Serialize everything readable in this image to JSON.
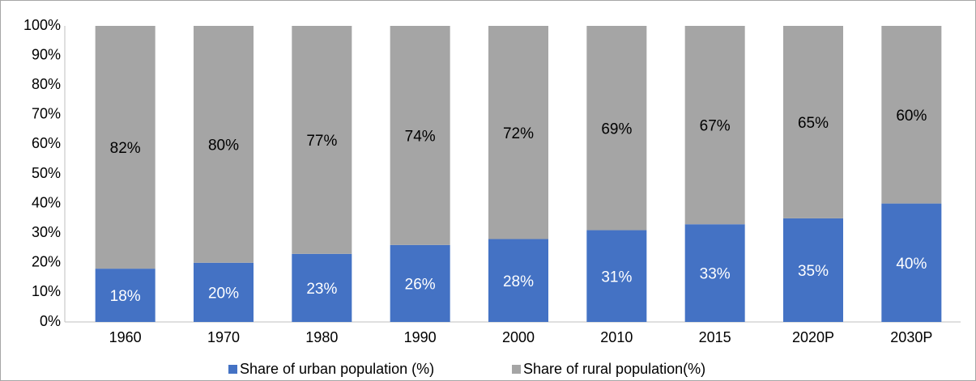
{
  "chart_data": {
    "type": "stacked_bar",
    "categories": [
      "1960",
      "1970",
      "1980",
      "1990",
      "2000",
      "2010",
      "2015",
      "2020P",
      "2030P"
    ],
    "series": [
      {
        "name": "Share of urban population (%)",
        "color": "#4472c4",
        "values": [
          18,
          20,
          23,
          26,
          28,
          31,
          33,
          35,
          40
        ],
        "value_labels": [
          "18%",
          "20%",
          "23%",
          "26%",
          "28%",
          "31%",
          "33%",
          "35%",
          "40%"
        ]
      },
      {
        "name": "Share of rural population(%)",
        "color": "#a5a5a5",
        "values": [
          82,
          80,
          77,
          74,
          72,
          69,
          67,
          65,
          60
        ],
        "value_labels": [
          "82%",
          "80%",
          "77%",
          "74%",
          "72%",
          "69%",
          "67%",
          "65%",
          "60%"
        ]
      }
    ],
    "ylim": [
      0,
      100
    ],
    "yticks": [
      {
        "value": 0,
        "label": "0%"
      },
      {
        "value": 10,
        "label": "10%"
      },
      {
        "value": 20,
        "label": "20%"
      },
      {
        "value": 30,
        "label": "30%"
      },
      {
        "value": 40,
        "label": "40%"
      },
      {
        "value": 50,
        "label": "50%"
      },
      {
        "value": 60,
        "label": "60%"
      },
      {
        "value": 70,
        "label": "70%"
      },
      {
        "value": 80,
        "label": "80%"
      },
      {
        "value": 90,
        "label": "90%"
      },
      {
        "value": 100,
        "label": "100%"
      }
    ],
    "grid": false,
    "legend": "bottom"
  }
}
